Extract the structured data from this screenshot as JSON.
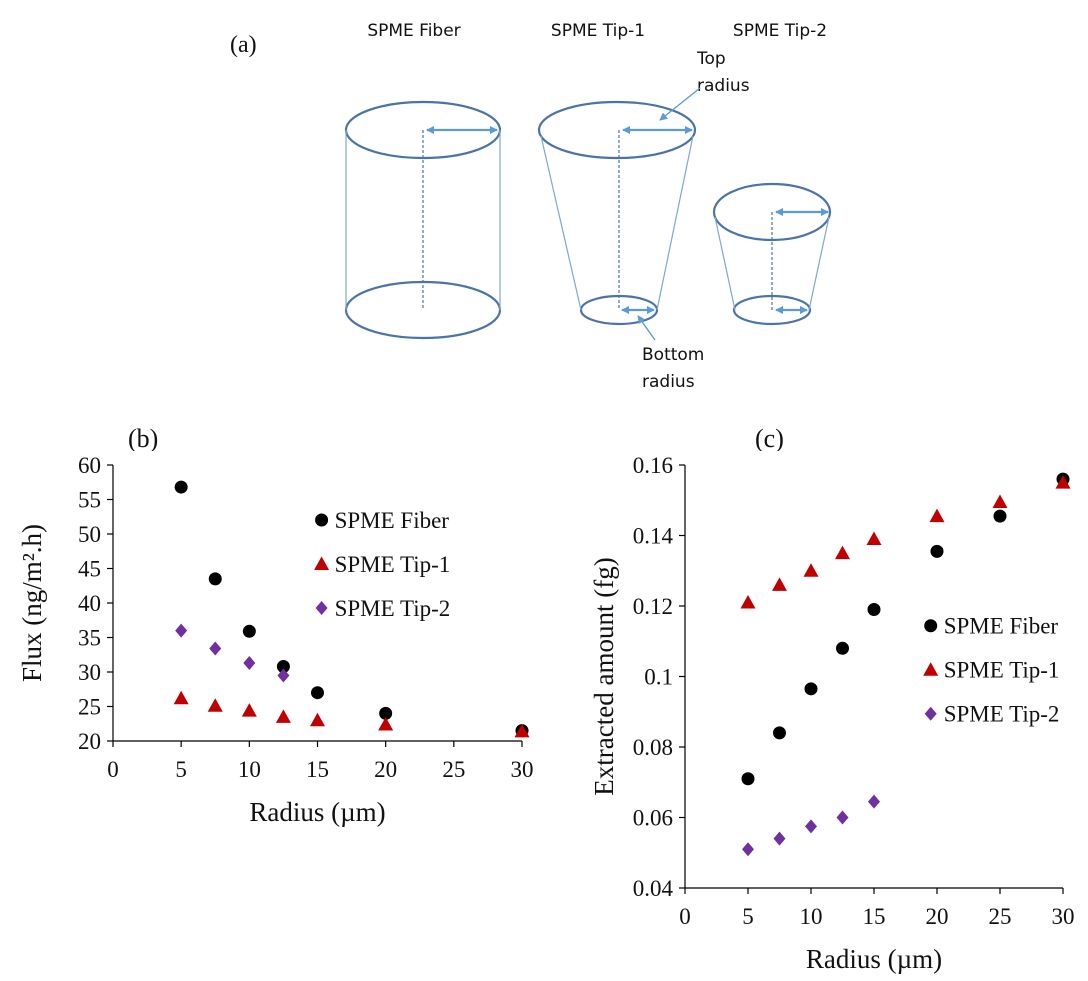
{
  "panel_a": {
    "label": "(a)",
    "titles": [
      "SPME Fiber",
      "SPME Tip-1",
      "SPME Tip-2"
    ],
    "top_radius": [
      "Top",
      "radius"
    ],
    "bottom_radius": [
      "Bottom",
      "radius"
    ]
  },
  "chart_data": [
    {
      "type": "scatter",
      "panel_label": "(b)",
      "x_label": "Radius (µm)",
      "y_label": "Flux (ng/m².h)",
      "xlim": [
        0,
        30
      ],
      "xticks": [
        0,
        5,
        10,
        15,
        20,
        25,
        30
      ],
      "ylim": [
        20,
        60
      ],
      "yticks": [
        20,
        25,
        30,
        35,
        40,
        45,
        50,
        55,
        60
      ],
      "legend": "upper right",
      "series": [
        {
          "name": "SPME Fiber",
          "color": "#000000",
          "marker": "circle",
          "x": [
            5,
            7.5,
            10,
            12.5,
            15,
            20,
            30
          ],
          "values": [
            56.8,
            43.5,
            35.9,
            30.8,
            27.0,
            24.0,
            21.5
          ]
        },
        {
          "name": "SPME Tip-1",
          "color": "#c00000",
          "marker": "triangle",
          "x": [
            5,
            7.5,
            10,
            12.5,
            15,
            20,
            30
          ],
          "values": [
            26.2,
            25.1,
            24.4,
            23.5,
            23.0,
            22.4,
            21.4
          ]
        },
        {
          "name": "SPME Tip-2",
          "color": "#7030a0",
          "marker": "diamond",
          "x": [
            5,
            7.5,
            10,
            12.5
          ],
          "values": [
            36.0,
            33.4,
            31.3,
            29.5
          ]
        }
      ]
    },
    {
      "type": "scatter",
      "panel_label": "(c)",
      "x_label": "Radius (µm)",
      "y_label": "Extracted amount (fg)",
      "xlim": [
        0,
        30
      ],
      "xticks": [
        0,
        5,
        10,
        15,
        20,
        25,
        30
      ],
      "ylim": [
        0.04,
        0.16
      ],
      "yticks": [
        0.04,
        0.06,
        0.08,
        0.1,
        0.12,
        0.14,
        0.16
      ],
      "legend": "center right",
      "series": [
        {
          "name": "SPME Fiber",
          "color": "#000000",
          "marker": "circle",
          "x": [
            5,
            7.5,
            10,
            12.5,
            15,
            20,
            25,
            30
          ],
          "values": [
            0.071,
            0.084,
            0.0965,
            0.108,
            0.119,
            0.1355,
            0.1455,
            0.156
          ]
        },
        {
          "name": "SPME Tip-1",
          "color": "#c00000",
          "marker": "triangle",
          "x": [
            5,
            7.5,
            10,
            12.5,
            15,
            20,
            25,
            30
          ],
          "values": [
            0.121,
            0.126,
            0.13,
            0.135,
            0.139,
            0.1455,
            0.1495,
            0.155
          ]
        },
        {
          "name": "SPME Tip-2",
          "color": "#7030a0",
          "marker": "diamond",
          "x": [
            5,
            7.5,
            10,
            12.5,
            15
          ],
          "values": [
            0.051,
            0.054,
            0.0575,
            0.06,
            0.0645
          ]
        }
      ]
    }
  ]
}
